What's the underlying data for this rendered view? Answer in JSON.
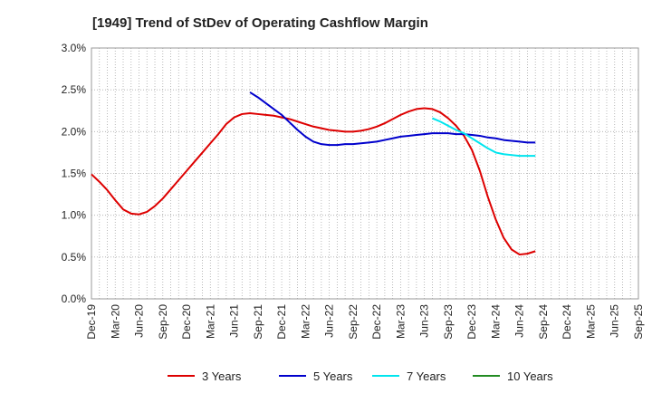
{
  "chart_data": {
    "type": "line",
    "title": "[1949]  Trend of StDev of Operating Cashflow Margin",
    "xlabel": "",
    "ylabel": "",
    "ylim": [
      0,
      3.0
    ],
    "y_ticks": [
      "0.0%",
      "0.5%",
      "1.0%",
      "1.5%",
      "2.0%",
      "2.5%",
      "3.0%"
    ],
    "y_tick_values": [
      0,
      0.5,
      1.0,
      1.5,
      2.0,
      2.5,
      3.0
    ],
    "x_tick_labels": [
      "Dec-19",
      "Mar-20",
      "Jun-20",
      "Sep-20",
      "Dec-20",
      "Mar-21",
      "Jun-21",
      "Sep-21",
      "Dec-21",
      "Mar-22",
      "Jun-22",
      "Sep-22",
      "Dec-22",
      "Mar-23",
      "Jun-23",
      "Sep-23",
      "Dec-23",
      "Mar-24",
      "Jun-24",
      "Sep-24",
      "Dec-24",
      "Mar-25",
      "Jun-25",
      "Sep-25"
    ],
    "grid": true,
    "legend_position": "bottom",
    "series": [
      {
        "name": "3 Years",
        "color": "#dd0000",
        "points": [
          [
            "Dec-19",
            1.49
          ],
          [
            "Jan-20",
            1.4
          ],
          [
            "Feb-20",
            1.3
          ],
          [
            "Mar-20",
            1.18
          ],
          [
            "Apr-20",
            1.07
          ],
          [
            "May-20",
            1.02
          ],
          [
            "Jun-20",
            1.01
          ],
          [
            "Jul-20",
            1.04
          ],
          [
            "Aug-20",
            1.11
          ],
          [
            "Sep-20",
            1.2
          ],
          [
            "Oct-20",
            1.31
          ],
          [
            "Nov-20",
            1.42
          ],
          [
            "Dec-20",
            1.53
          ],
          [
            "Jan-21",
            1.64
          ],
          [
            "Feb-21",
            1.75
          ],
          [
            "Mar-21",
            1.86
          ],
          [
            "Apr-21",
            1.97
          ],
          [
            "May-21",
            2.09
          ],
          [
            "Jun-21",
            2.17
          ],
          [
            "Jul-21",
            2.21
          ],
          [
            "Aug-21",
            2.22
          ],
          [
            "Sep-21",
            2.21
          ],
          [
            "Oct-21",
            2.2
          ],
          [
            "Nov-21",
            2.19
          ],
          [
            "Dec-21",
            2.17
          ],
          [
            "Jan-22",
            2.15
          ],
          [
            "Feb-22",
            2.12
          ],
          [
            "Mar-22",
            2.09
          ],
          [
            "Apr-22",
            2.06
          ],
          [
            "May-22",
            2.04
          ],
          [
            "Jun-22",
            2.02
          ],
          [
            "Jul-22",
            2.01
          ],
          [
            "Aug-22",
            2.0
          ],
          [
            "Sep-22",
            2.0
          ],
          [
            "Oct-22",
            2.01
          ],
          [
            "Nov-22",
            2.03
          ],
          [
            "Dec-22",
            2.06
          ],
          [
            "Jan-23",
            2.1
          ],
          [
            "Feb-23",
            2.15
          ],
          [
            "Mar-23",
            2.2
          ],
          [
            "Apr-23",
            2.24
          ],
          [
            "May-23",
            2.27
          ],
          [
            "Jun-23",
            2.28
          ],
          [
            "Jul-23",
            2.27
          ],
          [
            "Aug-23",
            2.23
          ],
          [
            "Sep-23",
            2.16
          ],
          [
            "Oct-23",
            2.07
          ],
          [
            "Nov-23",
            1.95
          ],
          [
            "Dec-23",
            1.78
          ],
          [
            "Jan-24",
            1.53
          ],
          [
            "Feb-24",
            1.22
          ],
          [
            "Mar-24",
            0.95
          ],
          [
            "Apr-24",
            0.73
          ],
          [
            "May-24",
            0.59
          ],
          [
            "Jun-24",
            0.53
          ],
          [
            "Jul-24",
            0.54
          ],
          [
            "Aug-24",
            0.57
          ]
        ]
      },
      {
        "name": "5 Years",
        "color": "#0000cc",
        "points": [
          [
            "Aug-21",
            2.47
          ],
          [
            "Sep-21",
            2.41
          ],
          [
            "Oct-21",
            2.34
          ],
          [
            "Nov-21",
            2.27
          ],
          [
            "Dec-21",
            2.2
          ],
          [
            "Jan-22",
            2.11
          ],
          [
            "Feb-22",
            2.02
          ],
          [
            "Mar-22",
            1.94
          ],
          [
            "Apr-22",
            1.88
          ],
          [
            "May-22",
            1.85
          ],
          [
            "Jun-22",
            1.84
          ],
          [
            "Jul-22",
            1.84
          ],
          [
            "Aug-22",
            1.85
          ],
          [
            "Sep-22",
            1.85
          ],
          [
            "Oct-22",
            1.86
          ],
          [
            "Nov-22",
            1.87
          ],
          [
            "Dec-22",
            1.88
          ],
          [
            "Jan-23",
            1.9
          ],
          [
            "Feb-23",
            1.92
          ],
          [
            "Mar-23",
            1.94
          ],
          [
            "Apr-23",
            1.95
          ],
          [
            "May-23",
            1.96
          ],
          [
            "Jun-23",
            1.97
          ],
          [
            "Jul-23",
            1.98
          ],
          [
            "Aug-23",
            1.98
          ],
          [
            "Sep-23",
            1.98
          ],
          [
            "Oct-23",
            1.97
          ],
          [
            "Nov-23",
            1.97
          ],
          [
            "Dec-23",
            1.96
          ],
          [
            "Jan-24",
            1.95
          ],
          [
            "Feb-24",
            1.93
          ],
          [
            "Mar-24",
            1.92
          ],
          [
            "Apr-24",
            1.9
          ],
          [
            "May-24",
            1.89
          ],
          [
            "Jun-24",
            1.88
          ],
          [
            "Jul-24",
            1.87
          ],
          [
            "Aug-24",
            1.87
          ]
        ]
      },
      {
        "name": "7 Years",
        "color": "#00e5ee",
        "points": [
          [
            "Jul-23",
            2.16
          ],
          [
            "Aug-23",
            2.12
          ],
          [
            "Sep-23",
            2.07
          ],
          [
            "Oct-23",
            2.02
          ],
          [
            "Nov-23",
            1.98
          ],
          [
            "Dec-23",
            1.92
          ],
          [
            "Jan-24",
            1.86
          ],
          [
            "Feb-24",
            1.8
          ],
          [
            "Mar-24",
            1.75
          ],
          [
            "Apr-24",
            1.73
          ],
          [
            "May-24",
            1.72
          ],
          [
            "Jun-24",
            1.71
          ],
          [
            "Jul-24",
            1.71
          ],
          [
            "Aug-24",
            1.71
          ]
        ]
      },
      {
        "name": "10 Years",
        "color": "#228b22",
        "points": []
      }
    ]
  }
}
